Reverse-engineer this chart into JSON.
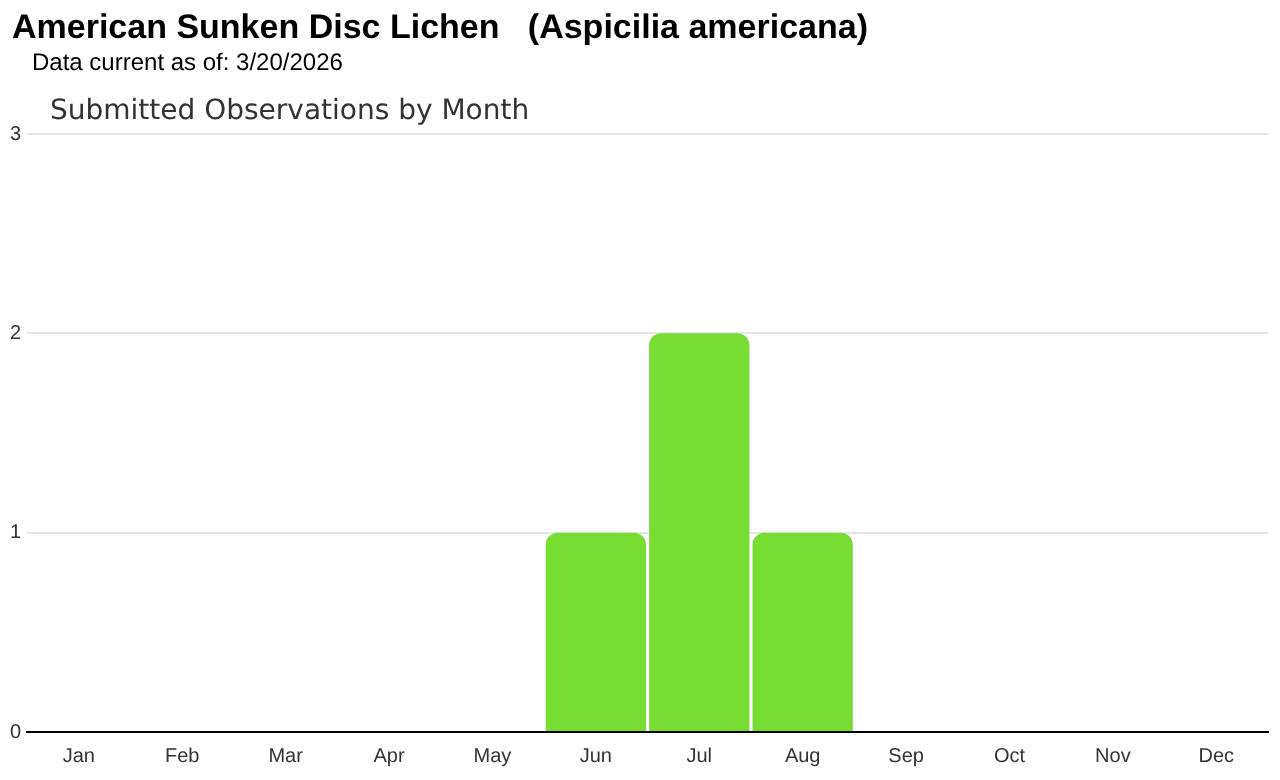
{
  "chart_data": {
    "type": "bar",
    "title": "American Sunken Disc Lichen   (Aspicilia americana)",
    "subtitle": "Data current as of: 3/20/2026",
    "annotations": [
      "Submitted Observations by Month"
    ],
    "categories": [
      "Jan",
      "Feb",
      "Mar",
      "Apr",
      "May",
      "Jun",
      "Jul",
      "Aug",
      "Sep",
      "Oct",
      "Nov",
      "Dec"
    ],
    "values": [
      0,
      0,
      0,
      0,
      0,
      1,
      2,
      1,
      0,
      0,
      0,
      0
    ],
    "color": "#77dd33",
    "ylim": [
      0,
      3
    ],
    "yticks": [
      0,
      1,
      2,
      3
    ],
    "grid": "y",
    "legend": false
  }
}
